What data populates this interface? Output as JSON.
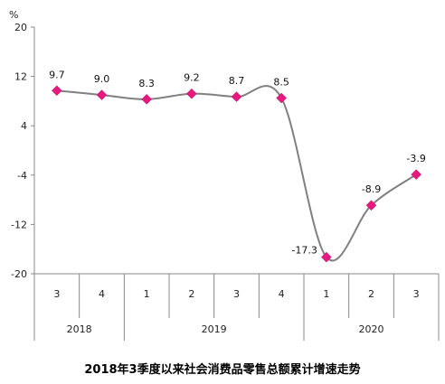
{
  "chart_data": {
    "type": "line",
    "title": "2018年3季度以来社会消费品零售总额累计增速走势",
    "unit": "%",
    "ylim": [
      -20,
      20
    ],
    "yticks": [
      20,
      12,
      4,
      -4,
      -12,
      -20
    ],
    "quarters": [
      "3",
      "4",
      "1",
      "2",
      "3",
      "4",
      "1",
      "2",
      "3"
    ],
    "years": [
      {
        "label": "2018",
        "count": 2
      },
      {
        "label": "2019",
        "count": 4
      },
      {
        "label": "2020",
        "count": 3
      }
    ],
    "series": [
      {
        "values": [
          9.7,
          9.0,
          8.3,
          9.2,
          8.7,
          8.5,
          -17.3,
          -8.9,
          -3.9
        ],
        "labels": [
          "9.7",
          "9.0",
          "8.3",
          "9.2",
          "8.7",
          "8.5",
          "-17.3",
          "-8.9",
          "-3.9"
        ]
      }
    ],
    "line_color": "#808080",
    "marker_color": "#E6197F",
    "grid": false
  }
}
